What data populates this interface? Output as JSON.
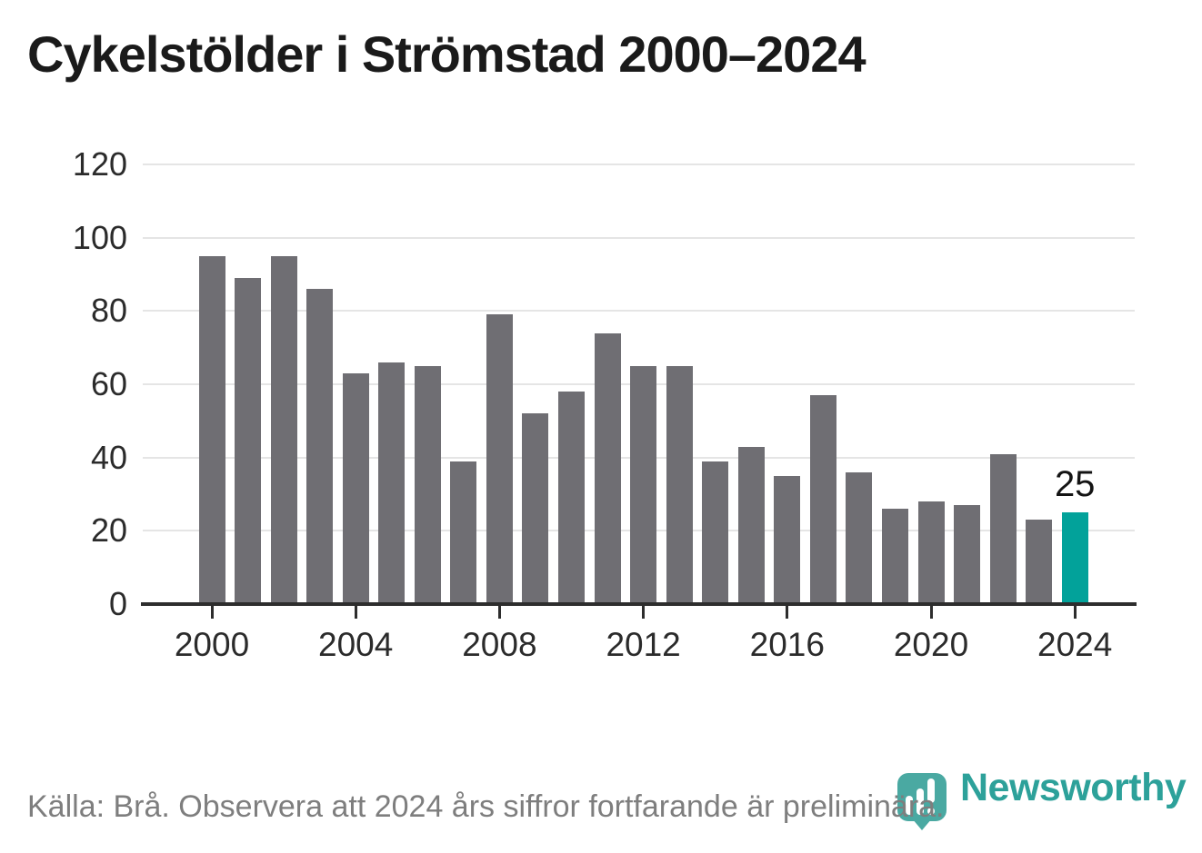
{
  "title": "Cykelstölder i Strömstad 2000–2024",
  "footer": {
    "source_note": "Källa: Brå. Observera att 2024 års siffror fortfarande är preliminära."
  },
  "branding": {
    "logo_text": "Newsworthy",
    "logo_icon": "newsworthy-speech-bubble-bar-chart-icon"
  },
  "colors": {
    "bar": "#6f6e73",
    "bar_highlight": "#02a29a",
    "axis": "#2d2d2d",
    "grid": "#e5e5e5",
    "title_text": "#1a1a1a",
    "axis_label": "#2b2b2b",
    "value_label": "#141414",
    "footer_text": "#7e7e7e",
    "logo_mark": "#4aa9a2",
    "logo_text_color": "#2da19a"
  },
  "chart_data": {
    "type": "bar",
    "title": "Cykelstölder i Strömstad 2000–2024",
    "xlabel": "",
    "ylabel": "",
    "x": [
      2000,
      2001,
      2002,
      2003,
      2004,
      2005,
      2006,
      2007,
      2008,
      2009,
      2010,
      2011,
      2012,
      2013,
      2014,
      2015,
      2016,
      2017,
      2018,
      2019,
      2020,
      2021,
      2022,
      2023,
      2024
    ],
    "values": [
      95,
      89,
      95,
      86,
      63,
      66,
      65,
      39,
      79,
      52,
      58,
      74,
      65,
      65,
      39,
      43,
      35,
      57,
      36,
      26,
      28,
      27,
      41,
      23,
      25
    ],
    "highlight_x": 2024,
    "highlight_value_label": "25",
    "ylim": [
      0,
      120
    ],
    "yticks": [
      0,
      20,
      40,
      60,
      80,
      100,
      120
    ],
    "xticks": [
      2000,
      2004,
      2008,
      2012,
      2016,
      2020,
      2024
    ],
    "grid": "horizontal",
    "legend": "none"
  }
}
